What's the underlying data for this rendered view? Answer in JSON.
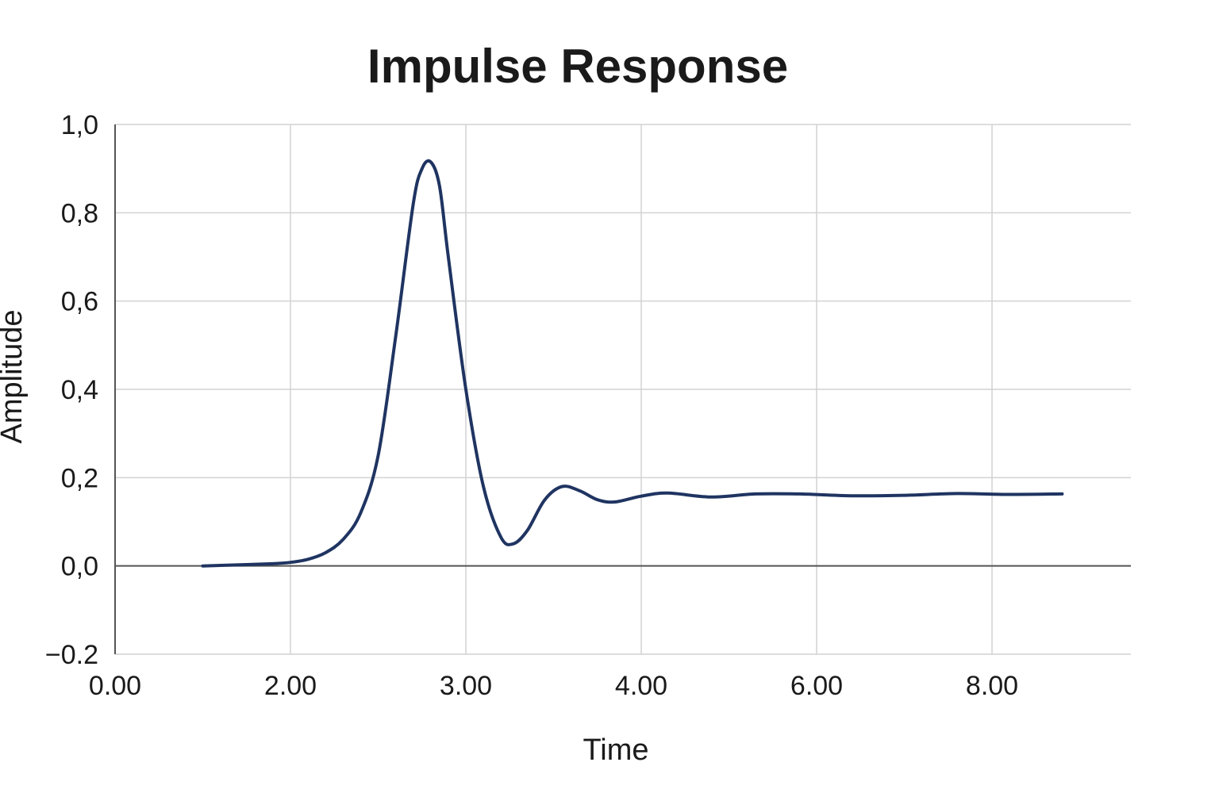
{
  "chart_data": {
    "type": "line",
    "title": "Impulse Response",
    "xlabel": "Time",
    "ylabel": "Amplitude",
    "ylim": [
      -0.2,
      1.0
    ],
    "grid": true,
    "x_ticks": [
      {
        "pos": 0,
        "label": "0.00"
      },
      {
        "pos": 1,
        "label": "2.00"
      },
      {
        "pos": 2,
        "label": "3.00"
      },
      {
        "pos": 3,
        "label": "4.00"
      },
      {
        "pos": 4,
        "label": "6.00"
      },
      {
        "pos": 5,
        "label": "8.00"
      }
    ],
    "xlim": [
      0,
      5.8
    ],
    "y_ticks": [
      {
        "value": 1.0,
        "label": "1,0"
      },
      {
        "value": 0.8,
        "label": "0,8"
      },
      {
        "value": 0.6,
        "label": "0,6"
      },
      {
        "value": 0.4,
        "label": "0,4"
      },
      {
        "value": 0.2,
        "label": "0,2"
      },
      {
        "value": 0.0,
        "label": "0,0"
      },
      {
        "value": -0.2,
        "label": "−0.2"
      }
    ],
    "series": [
      {
        "color": "#1f3461",
        "points": [
          [
            0.5,
            0.0
          ],
          [
            0.75,
            0.003
          ],
          [
            0.9,
            0.005
          ],
          [
            1.0,
            0.008
          ],
          [
            1.1,
            0.015
          ],
          [
            1.2,
            0.03
          ],
          [
            1.3,
            0.06
          ],
          [
            1.4,
            0.12
          ],
          [
            1.5,
            0.25
          ],
          [
            1.6,
            0.52
          ],
          [
            1.7,
            0.82
          ],
          [
            1.75,
            0.9
          ],
          [
            1.8,
            0.915
          ],
          [
            1.85,
            0.86
          ],
          [
            1.9,
            0.7
          ],
          [
            2.0,
            0.4
          ],
          [
            2.1,
            0.18
          ],
          [
            2.2,
            0.065
          ],
          [
            2.27,
            0.05
          ],
          [
            2.35,
            0.08
          ],
          [
            2.45,
            0.15
          ],
          [
            2.55,
            0.18
          ],
          [
            2.65,
            0.17
          ],
          [
            2.75,
            0.15
          ],
          [
            2.85,
            0.145
          ],
          [
            3.0,
            0.158
          ],
          [
            3.15,
            0.165
          ],
          [
            3.4,
            0.156
          ],
          [
            3.65,
            0.163
          ],
          [
            3.9,
            0.163
          ],
          [
            4.2,
            0.159
          ],
          [
            4.5,
            0.16
          ],
          [
            4.8,
            0.164
          ],
          [
            5.1,
            0.162
          ],
          [
            5.4,
            0.163
          ]
        ]
      }
    ]
  }
}
